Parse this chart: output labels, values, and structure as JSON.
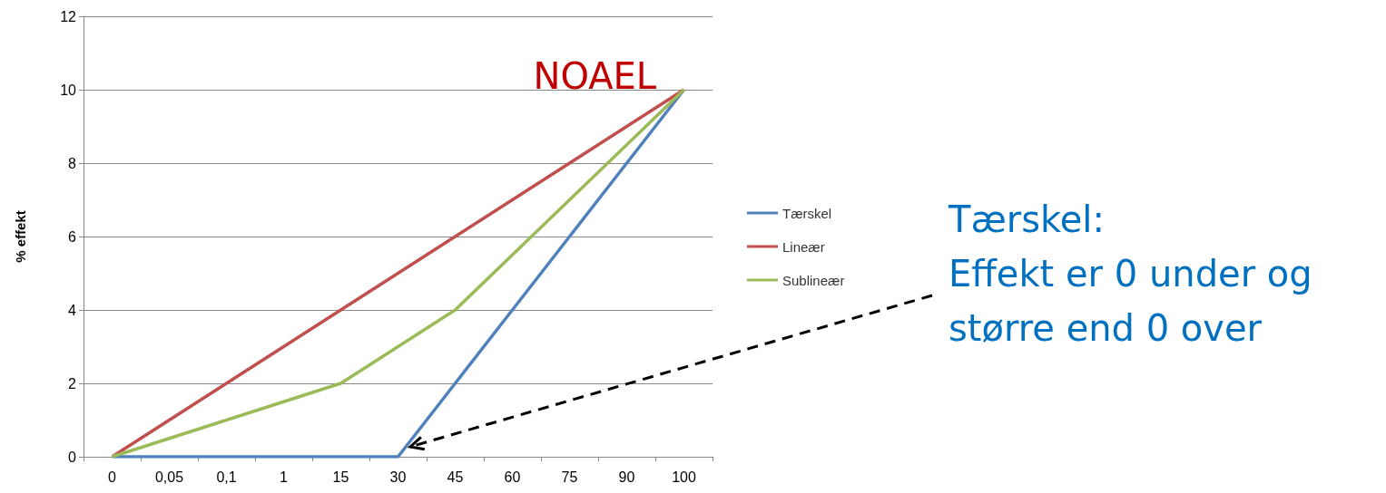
{
  "chart_data": {
    "type": "line",
    "ylabel": "% effekt",
    "categories": [
      "0",
      "0,05",
      "0,1",
      "1",
      "15",
      "30",
      "45",
      "60",
      "75",
      "90",
      "100"
    ],
    "series": [
      {
        "name": "Tærskel",
        "color": "#4f81bd",
        "values": [
          0,
          0,
          0,
          0,
          0,
          0,
          2,
          4,
          6,
          8,
          10
        ]
      },
      {
        "name": "Lineær",
        "color": "#c0504d",
        "values": [
          0,
          1,
          2,
          3,
          4,
          5,
          6,
          7,
          8,
          9,
          10
        ]
      },
      {
        "name": "Sublineær",
        "color": "#9bbb59",
        "values": [
          0,
          0.5,
          1,
          1.5,
          2,
          3,
          4,
          5.5,
          7,
          8.5,
          10
        ]
      }
    ],
    "ylim": [
      0,
      12
    ],
    "yticks": [
      0,
      2,
      4,
      6,
      8,
      10,
      12
    ],
    "grid": "y",
    "legend": "right",
    "marker": "none",
    "line_style": "solid",
    "annotations": [
      {
        "text": "NOAEL",
        "x": "100",
        "y": 10
      },
      "Tærskel:\nEffekt er 0 under og større end 0 over"
    ]
  }
}
